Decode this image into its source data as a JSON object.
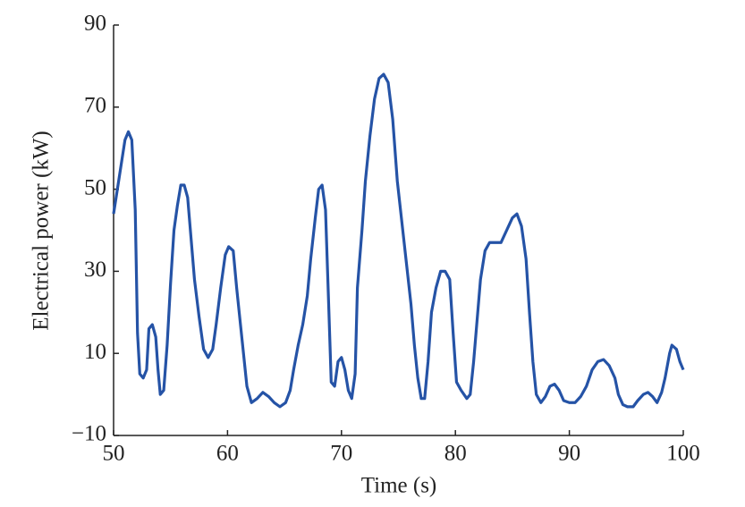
{
  "chart_data": {
    "type": "line",
    "xlabel": "Time (s)",
    "ylabel": "Electrical power (kW)",
    "xlim": [
      50,
      100
    ],
    "xticks": [
      50,
      60,
      70,
      80,
      90,
      100
    ],
    "ylim": [
      -10,
      90
    ],
    "yticks": [
      {
        "value": -10,
        "label": "−10"
      },
      10,
      30,
      50,
      70,
      90
    ],
    "series": [
      {
        "color": "#2553a6",
        "x": [
          50,
          50.5,
          51,
          51.3,
          51.6,
          51.9,
          52.1,
          52.3,
          52.6,
          52.9,
          53.1,
          53.4,
          53.7,
          53.9,
          54.1,
          54.4,
          54.7,
          55.0,
          55.3,
          55.6,
          55.9,
          56.2,
          56.5,
          56.8,
          57.1,
          57.5,
          57.9,
          58.3,
          58.7,
          59.0,
          59.4,
          59.8,
          60.1,
          60.5,
          60.8,
          61.1,
          61.4,
          61.7,
          62.1,
          62.6,
          63.1,
          63.6,
          64.1,
          64.6,
          65.1,
          65.5,
          65.8,
          66.2,
          66.6,
          67.0,
          67.3,
          67.7,
          68.0,
          68.3,
          68.6,
          68.9,
          69.1,
          69.4,
          69.7,
          70.0,
          70.3,
          70.6,
          70.9,
          71.2,
          71.4,
          71.8,
          72.1,
          72.5,
          72.9,
          73.3,
          73.7,
          74.1,
          74.5,
          74.9,
          75.3,
          75.7,
          76.1,
          76.4,
          76.7,
          77.0,
          77.3,
          77.6,
          77.9,
          78.3,
          78.7,
          79.1,
          79.5,
          79.8,
          80.1,
          80.5,
          81.0,
          81.3,
          81.6,
          81.9,
          82.2,
          82.6,
          83.0,
          83.5,
          84.0,
          84.5,
          85.0,
          85.4,
          85.8,
          86.2,
          86.5,
          86.8,
          87.1,
          87.5,
          87.9,
          88.3,
          88.7,
          89.1,
          89.5,
          90.0,
          90.5,
          91.0,
          91.5,
          92.0,
          92.5,
          93.0,
          93.5,
          94.0,
          94.3,
          94.7,
          95.1,
          95.6,
          96.0,
          96.5,
          96.9,
          97.3,
          97.7,
          98.1,
          98.4,
          98.8,
          99.0,
          99.4,
          99.7,
          100
        ],
        "values": [
          44,
          53,
          62,
          64,
          62,
          45,
          15,
          5,
          4,
          6,
          16,
          17,
          14,
          6,
          0,
          1,
          12,
          27,
          40,
          46,
          51,
          51,
          48,
          38,
          28,
          19,
          11,
          9,
          11,
          17,
          26,
          34,
          36,
          35,
          26,
          18,
          10,
          2,
          -2,
          -1,
          0.5,
          -0.5,
          -2,
          -3,
          -2,
          1,
          6,
          12,
          17,
          24,
          33,
          43,
          50,
          51,
          45,
          20,
          3,
          2,
          8,
          9,
          6,
          1,
          -1,
          5,
          26,
          40,
          52,
          63,
          72,
          77,
          78,
          76,
          67,
          52,
          42,
          32,
          22,
          12,
          4,
          -1,
          -1,
          8,
          20,
          26,
          30,
          30,
          28,
          15,
          3,
          1,
          -1,
          0,
          8,
          18,
          28,
          35,
          37,
          37,
          37,
          40,
          43,
          44,
          41,
          33,
          20,
          8,
          0,
          -2,
          -0.5,
          2,
          2.5,
          1,
          -1.5,
          -2,
          -2,
          -0.5,
          2,
          6,
          8,
          8.5,
          7,
          4,
          0,
          -2.5,
          -3,
          -3,
          -1.5,
          0,
          0.5,
          -0.5,
          -2,
          0.5,
          4,
          10,
          12,
          11,
          8,
          6
        ]
      }
    ]
  }
}
